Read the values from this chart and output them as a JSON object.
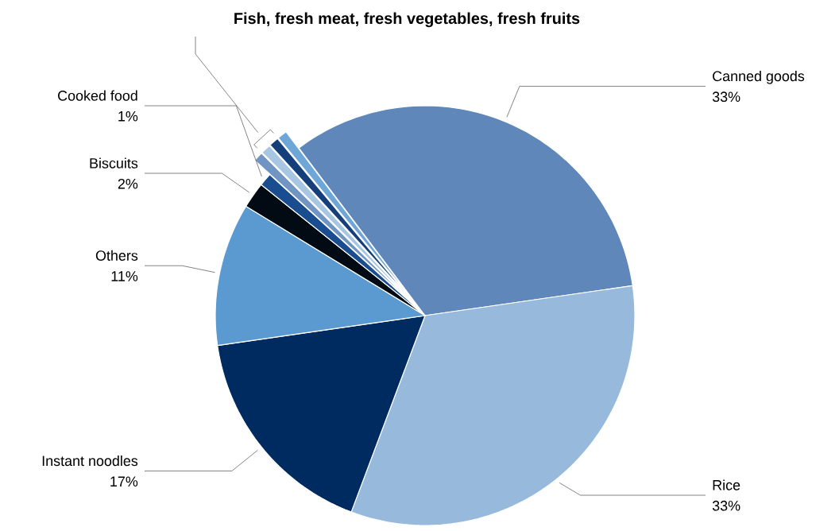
{
  "chart_data": {
    "type": "pie",
    "title": "Fish, fresh meat, fresh vegetables, fresh fruits",
    "categories": [
      "Canned goods",
      "Rice",
      "Instant noodles",
      "Others",
      "Biscuits",
      "Cooked food",
      null,
      null,
      null,
      null
    ],
    "values": [
      33,
      33,
      17,
      11,
      2,
      1,
      0.75,
      0.75,
      0.75,
      0.75
    ],
    "value_labels": [
      "33%",
      "33%",
      "17%",
      "11%",
      "2%",
      "1%",
      null,
      null,
      null,
      null
    ],
    "colors": [
      "#5f87b9",
      "#97b9db",
      "#002b60",
      "#5a9ad0",
      "#020a14",
      "#1a4d8f",
      "#7095c3",
      "#a6c6e2",
      "#153f7a",
      "#6ea6d8"
    ],
    "legend": false
  }
}
